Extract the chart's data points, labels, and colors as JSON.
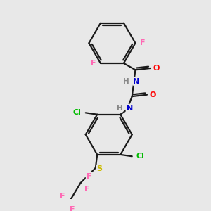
{
  "background_color": "#e8e8e8",
  "bond_color": "#1a1a1a",
  "atom_colors": {
    "F": "#ff69b4",
    "N": "#0000cd",
    "O": "#ff0000",
    "Cl": "#00bb00",
    "S": "#ccbb00",
    "C": "#1a1a1a",
    "H": "#888888"
  },
  "figsize": [
    3.0,
    3.0
  ],
  "dpi": 100
}
